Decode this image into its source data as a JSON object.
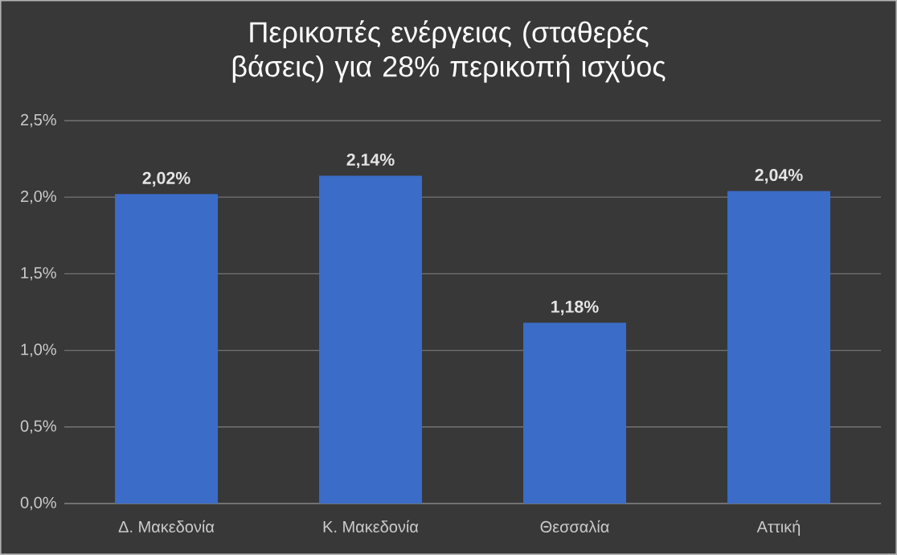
{
  "chart_data": {
    "type": "bar",
    "title": "Περικοπές ενέργειας (σταθερές βάσεις) για 28% περικοπή ισχύος",
    "categories": [
      "Δ. Μακεδονία",
      "Κ. Μακεδονία",
      "Θεσσαλία",
      "Αττική"
    ],
    "values": [
      2.02,
      2.14,
      1.18,
      2.04
    ],
    "value_labels": [
      "2,02%",
      "2,14%",
      "1,18%",
      "2,04%"
    ],
    "color": "#3b6cc7",
    "ylim": [
      0,
      2.5
    ],
    "yticks": [
      {
        "value": 0,
        "label": "0,0%"
      },
      {
        "value": 0.5,
        "label": "0,5%"
      },
      {
        "value": 1,
        "label": "1,0%"
      },
      {
        "value": 1.5,
        "label": "1,5%"
      },
      {
        "value": 2,
        "label": "2,0%"
      },
      {
        "value": 2.5,
        "label": "2,5%"
      }
    ],
    "grid": "y"
  }
}
